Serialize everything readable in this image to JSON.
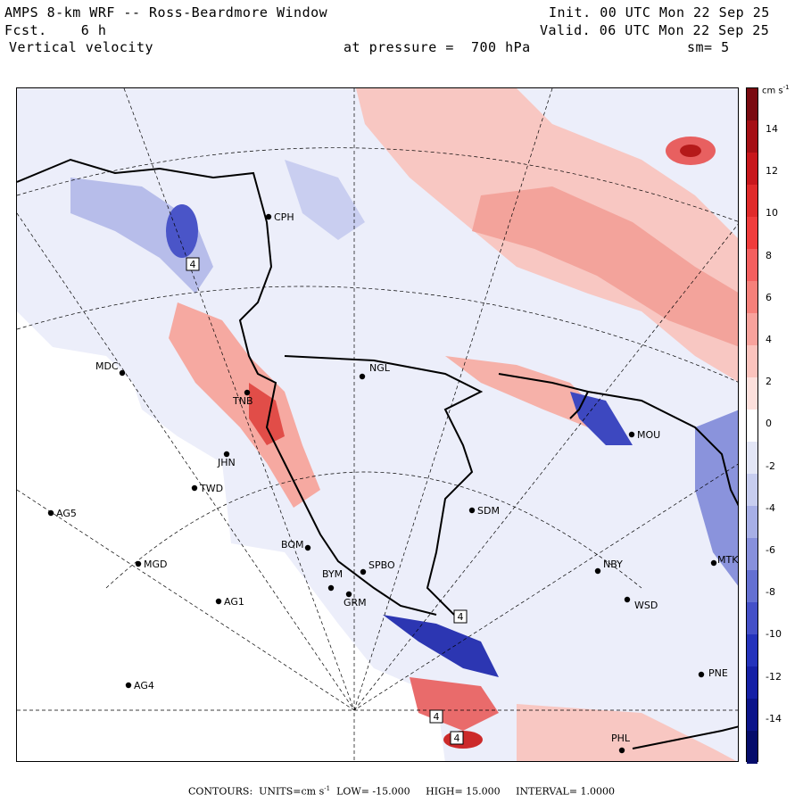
{
  "header": {
    "title": "AMPS 8-km WRF -- Ross-Beardmore Window",
    "fcst_label": "Fcst.",
    "fcst_value": "6 h",
    "field": "Vertical velocity",
    "pressure_label": "at pressure =",
    "pressure_value": "700 hPa",
    "init_label": "Init.",
    "init_value": "00 UTC Mon 22 Sep 25",
    "valid_label": "Valid.",
    "valid_value": "06 UTC Mon 22 Sep 25",
    "smoothing": "sm= 5"
  },
  "colorbar": {
    "units": "cm s",
    "units_exp": "-1",
    "ticks": [
      "14",
      "12",
      "10",
      "8",
      "6",
      "4",
      "2",
      "0",
      "-2",
      "-4",
      "-6",
      "-8",
      "-10",
      "-12",
      "-14"
    ],
    "colors": [
      "#7a0a10",
      "#a50f15",
      "#c8171c",
      "#e02a2a",
      "#f03c3c",
      "#f45f5f",
      "#f6807a",
      "#f8a29c",
      "#fbc3bd",
      "#fde0dc",
      "#ffffff",
      "#e3e6f6",
      "#c7cdef",
      "#a7afe6",
      "#8790dc",
      "#6470d2",
      "#4450c8",
      "#2433bc",
      "#1520a6",
      "#0b148a",
      "#050c6b"
    ]
  },
  "stations": [
    {
      "code": "CPH"
    },
    {
      "code": "MDC"
    },
    {
      "code": "NGL"
    },
    {
      "code": "TNB"
    },
    {
      "code": "MOU"
    },
    {
      "code": "JHN"
    },
    {
      "code": "TWD"
    },
    {
      "code": "AG5"
    },
    {
      "code": "SDM"
    },
    {
      "code": "BOM"
    },
    {
      "code": "MGD"
    },
    {
      "code": "NBY"
    },
    {
      "code": "MTK"
    },
    {
      "code": "GRM"
    },
    {
      "code": "BYM"
    },
    {
      "code": "SPBO"
    },
    {
      "code": "AG1"
    },
    {
      "code": "WSD"
    },
    {
      "code": "AG4"
    },
    {
      "code": "PNE"
    },
    {
      "code": "PHL"
    }
  ],
  "boxed_labels": [
    "4",
    "4",
    "4",
    "4"
  ],
  "footer": {
    "contours_label": "CONTOURS:",
    "units_label": "UNITS=cm s",
    "units_exp": "-1",
    "low_label": "LOW=",
    "low_value": "-15.000",
    "high_label": "HIGH=",
    "high_value": "15.000",
    "interval_label": "INTERVAL=",
    "interval_value": "1.0000"
  }
}
